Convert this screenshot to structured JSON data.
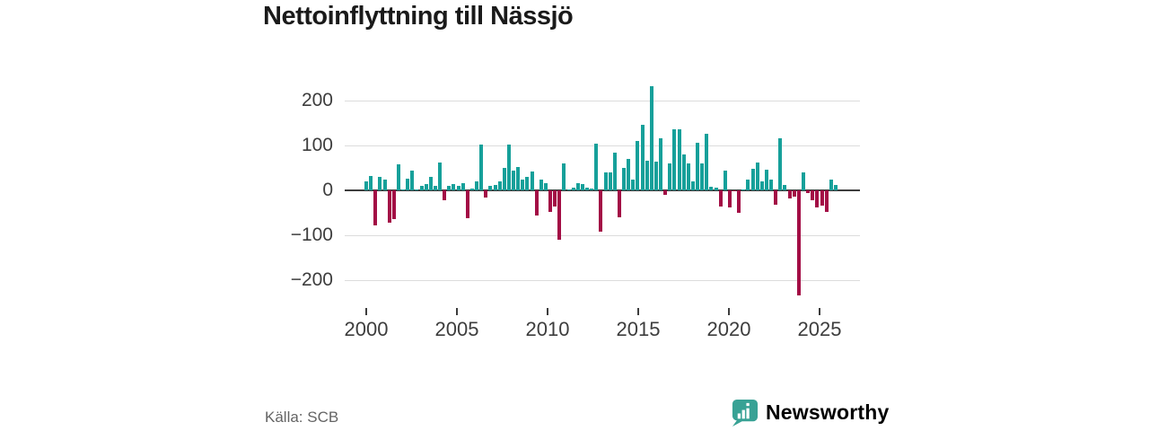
{
  "title": "Nettoinflyttning till Nässjö",
  "source": "Källa: SCB",
  "brand": {
    "name": "Newsworthy",
    "icon": "bar-chart-speech-bubble"
  },
  "colors": {
    "positive_bar": "#16a09a",
    "negative_bar": "#a30d45",
    "gridline": "#dcdcdc",
    "axis": "#3d3d3d",
    "brand_teal": "#38a295",
    "source_text": "#646464"
  },
  "chart_data": {
    "type": "bar",
    "title": "Nettoinflyttning till Nässjö",
    "frequency": "quarterly",
    "start_year": 2000,
    "start_quarter": 1,
    "end_year": 2025,
    "end_quarter": 3,
    "x_tick_years": [
      "2000",
      "2005",
      "2010",
      "2015",
      "2020",
      "2025"
    ],
    "y_ticks": [
      200,
      100,
      0,
      -100,
      -200
    ],
    "y_tick_labels": [
      "200",
      "100",
      "0",
      "−100",
      "−200"
    ],
    "ylim": [
      -250,
      250
    ],
    "grid": true,
    "values": [
      20,
      33,
      -78,
      31,
      24,
      -71,
      -63,
      58,
      2,
      27,
      44,
      2,
      10,
      15,
      30,
      10,
      63,
      -21,
      10,
      15,
      10,
      17,
      -61,
      4,
      20,
      103,
      -16,
      10,
      12,
      20,
      50,
      103,
      45,
      53,
      24,
      30,
      43,
      -55,
      25,
      17,
      -48,
      -35,
      -110,
      60,
      2,
      7,
      17,
      14,
      7,
      5,
      105,
      -91,
      41,
      40,
      84,
      -59,
      51,
      70,
      24,
      110,
      147,
      66,
      232,
      64,
      116,
      -9,
      60,
      137,
      136,
      81,
      60,
      20,
      107,
      60,
      127,
      9,
      6,
      -36,
      45,
      -38,
      -2,
      -49,
      3,
      24,
      48,
      63,
      20,
      47,
      24,
      -31,
      116,
      13,
      -18,
      -13,
      -233,
      41,
      -6,
      -22,
      -37,
      -34,
      -47,
      25,
      13
    ]
  }
}
